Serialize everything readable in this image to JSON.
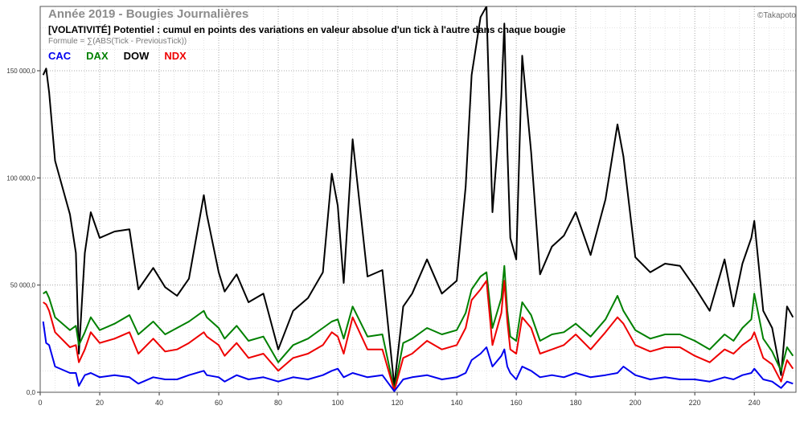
{
  "chart_data": {
    "type": "line",
    "title": "Année 2019 - Bougies Journalières",
    "subtitle": "[VOLATIVITÉ] Potentiel : cumul en points des variations en valeur absolue d'un tick à l'autre dans chaque bougie",
    "formula": "Formule = ∑(ABS(Tick - PreviousTick))",
    "watermark": "©Takapoto",
    "xlabel": "",
    "ylabel": "",
    "xlim": [
      0,
      254
    ],
    "ylim": [
      0,
      180000
    ],
    "x_ticks": [
      0,
      20,
      40,
      60,
      80,
      100,
      120,
      140,
      160,
      180,
      200,
      220,
      240
    ],
    "y_ticks": [
      0,
      50000,
      100000,
      150000
    ],
    "y_tick_labels": [
      "0,0",
      "50 000,0",
      "100 000,0",
      "150 000,0"
    ],
    "grid": true,
    "legend_position": "top-left",
    "keypoints": {
      "x": [
        1,
        2,
        3,
        5,
        10,
        12,
        13,
        15,
        17,
        20,
        25,
        30,
        33,
        38,
        42,
        46,
        50,
        55,
        56,
        60,
        62,
        66,
        70,
        75,
        80,
        85,
        90,
        95,
        98,
        100,
        102,
        105,
        110,
        115,
        119,
        122,
        125,
        130,
        135,
        140,
        143,
        145,
        148,
        150,
        152,
        155,
        156,
        157,
        158,
        160,
        162,
        165,
        168,
        172,
        176,
        180,
        185,
        190,
        194,
        196,
        200,
        205,
        210,
        215,
        220,
        225,
        230,
        233,
        236,
        239,
        240,
        243,
        246,
        249,
        251,
        253
      ],
      "series": [
        {
          "name": "CAC",
          "color": "#0000ee",
          "values": [
            33000,
            23000,
            22000,
            12000,
            9000,
            9000,
            3000,
            8000,
            9000,
            7000,
            8000,
            7000,
            4000,
            7000,
            6000,
            6000,
            8000,
            10000,
            8000,
            7000,
            5000,
            8000,
            6000,
            7000,
            5000,
            7000,
            6000,
            8000,
            10000,
            11000,
            7000,
            9000,
            7000,
            8000,
            500,
            6000,
            7000,
            8000,
            6000,
            7000,
            9000,
            15000,
            18000,
            21000,
            12000,
            17000,
            20000,
            12000,
            9000,
            6000,
            12000,
            10000,
            7000,
            8000,
            7000,
            9000,
            7000,
            8000,
            9000,
            12000,
            8000,
            6000,
            7000,
            6000,
            6000,
            5000,
            7000,
            6000,
            8000,
            9000,
            11000,
            6000,
            5000,
            2000,
            5000,
            4000
          ]
        },
        {
          "name": "DAX",
          "color": "#008000",
          "values": [
            46000,
            47000,
            44000,
            35000,
            29000,
            31000,
            22000,
            28000,
            35000,
            29000,
            32000,
            36000,
            27000,
            33000,
            27000,
            30000,
            33000,
            38000,
            35000,
            30000,
            25000,
            31000,
            24000,
            26000,
            14000,
            22000,
            25000,
            30000,
            33000,
            34000,
            25000,
            40000,
            26000,
            27000,
            1000,
            23000,
            25000,
            30000,
            27000,
            29000,
            37000,
            48000,
            54000,
            56000,
            30000,
            44000,
            59000,
            38000,
            26000,
            24000,
            42000,
            36000,
            24000,
            27000,
            28000,
            32000,
            26000,
            34000,
            45000,
            38000,
            29000,
            25000,
            27000,
            27000,
            24000,
            20000,
            27000,
            24000,
            30000,
            34000,
            46000,
            25000,
            19000,
            10000,
            21000,
            17000
          ]
        },
        {
          "name": "DOW",
          "color": "#000000",
          "values": [
            148000,
            151000,
            140000,
            108000,
            83000,
            65000,
            18000,
            65000,
            84000,
            72000,
            75000,
            76000,
            48000,
            58000,
            49000,
            45000,
            53000,
            92000,
            83000,
            56000,
            47000,
            55000,
            42000,
            46000,
            20000,
            38000,
            44000,
            56000,
            102000,
            87000,
            51000,
            118000,
            54000,
            57000,
            3000,
            40000,
            46000,
            62000,
            46000,
            52000,
            96000,
            148000,
            175000,
            180000,
            84000,
            138000,
            172000,
            114000,
            72000,
            62000,
            157000,
            112000,
            55000,
            68000,
            73000,
            84000,
            64000,
            90000,
            125000,
            110000,
            63000,
            56000,
            60000,
            59000,
            49000,
            38000,
            62000,
            40000,
            60000,
            72000,
            80000,
            38000,
            30000,
            8000,
            40000,
            35000
          ]
        },
        {
          "name": "NDX",
          "color": "#ee0000",
          "values": [
            42000,
            41000,
            38000,
            28000,
            21000,
            22000,
            14000,
            20000,
            28000,
            23000,
            25000,
            28000,
            18000,
            25000,
            19000,
            20000,
            23000,
            28000,
            26000,
            22000,
            17000,
            23000,
            16000,
            18000,
            10000,
            16000,
            18000,
            22000,
            28000,
            26000,
            18000,
            35000,
            20000,
            20000,
            700,
            16000,
            18000,
            24000,
            20000,
            22000,
            30000,
            43000,
            48000,
            52000,
            22000,
            37000,
            52000,
            33000,
            20000,
            18000,
            35000,
            30000,
            18000,
            20000,
            22000,
            27000,
            20000,
            28000,
            35000,
            32000,
            22000,
            19000,
            21000,
            21000,
            17000,
            14000,
            20000,
            18000,
            22000,
            25000,
            28000,
            16000,
            13000,
            5000,
            15000,
            11000
          ]
        }
      ]
    }
  }
}
